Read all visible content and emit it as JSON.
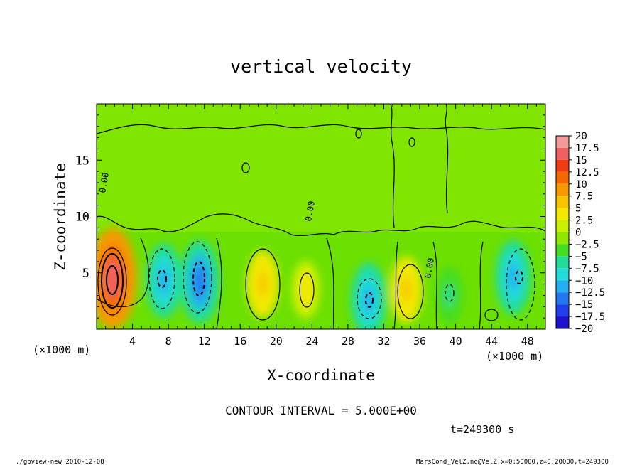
{
  "chart_data": {
    "type": "heatmap",
    "title": "vertical velocity",
    "xlabel": "X-coordinate",
    "ylabel": "Z-coordinate",
    "x_unit_left": "(×1000 m)",
    "x_unit_right": "(×1000 m)",
    "xlim": [
      0,
      50
    ],
    "ylim": [
      0,
      20
    ],
    "x_ticks": [
      4,
      8,
      12,
      16,
      20,
      24,
      28,
      32,
      36,
      40,
      44,
      48
    ],
    "y_ticks": [
      5,
      10,
      15
    ],
    "contour_interval_text": "CONTOUR INTERVAL = 5.000E+00",
    "time_text": "t=249300 s",
    "footer_left": "./gpview-new  2010-12-08",
    "footer_right": "MarsCond_VelZ.nc@VelZ,x=0:50000,z=0:20000,t=249300",
    "contour_label": "0.00",
    "colorbar": {
      "levels": [
        "20",
        "17.5",
        "15",
        "12.5",
        "10",
        "7.5",
        "5",
        "2.5",
        "0",
        "-2.5",
        "-5",
        "-7.5",
        "-10",
        "-12.5",
        "-15",
        "-17.5",
        "-20"
      ],
      "colors": [
        "#f59a9a",
        "#f06060",
        "#f03c10",
        "#f56800",
        "#f79a00",
        "#f7c400",
        "#f2e800",
        "#c8f000",
        "#8ee800",
        "#44dd22",
        "#22dd99",
        "#22dcdc",
        "#22b0f0",
        "#2278f0",
        "#2040f0",
        "#2010d0",
        "#6010c0"
      ]
    },
    "features": [
      {
        "kind": "max",
        "x": 1.8,
        "z": 4.5,
        "value": 17.5
      },
      {
        "kind": "min",
        "x": 7.5,
        "z": 4.3,
        "value": -10
      },
      {
        "kind": "min",
        "x": 11.5,
        "z": 4.2,
        "value": -12.5
      },
      {
        "kind": "max",
        "x": 18.5,
        "z": 4.0,
        "value": 7.5
      },
      {
        "kind": "max",
        "x": 23.3,
        "z": 3.5,
        "value": 5
      },
      {
        "kind": "min",
        "x": 30.3,
        "z": 2.6,
        "value": -10
      },
      {
        "kind": "max",
        "x": 34.5,
        "z": 3.5,
        "value": 7.5
      },
      {
        "kind": "min",
        "x": 46.4,
        "z": 4.6,
        "value": -10
      },
      {
        "kind": "min",
        "x": 39.3,
        "z": 3.0,
        "value": -5
      }
    ]
  }
}
